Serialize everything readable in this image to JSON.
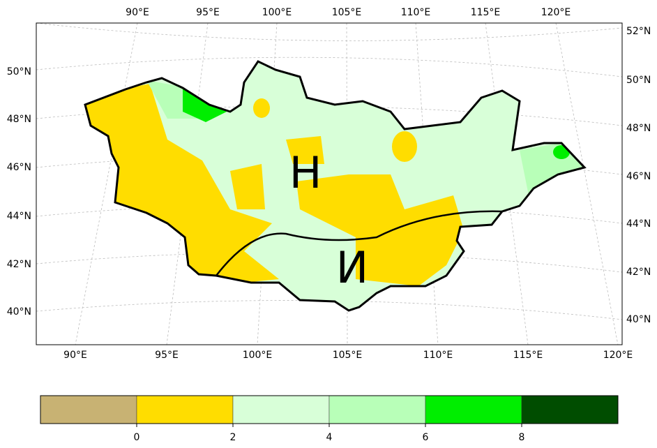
{
  "map": {
    "top_labels": [
      "90°E",
      "95°E",
      "100°E",
      "105°E",
      "110°E",
      "115°E",
      "120°E"
    ],
    "bottom_labels": [
      "90°E",
      "95°E",
      "100°E",
      "105°E",
      "110°E",
      "115°E",
      "120°E"
    ],
    "left_labels": [
      "50°N",
      "48°N",
      "46°N",
      "44°N",
      "42°N",
      "40°N"
    ],
    "right_labels": [
      "52°N",
      "50°N",
      "48°N",
      "46°N",
      "44°N",
      "42°N",
      "40°N"
    ],
    "annotations": [
      {
        "text": "Н",
        "color": "#000000"
      },
      {
        "text": "И",
        "color": "#00803a"
      }
    ]
  },
  "colorbar": {
    "colors": [
      "#c8b273",
      "#ffdd00",
      "#d8ffd8",
      "#b8ffb8",
      "#00ee00",
      "#004d00"
    ],
    "ticks": [
      0,
      2,
      4,
      6,
      8
    ]
  }
}
